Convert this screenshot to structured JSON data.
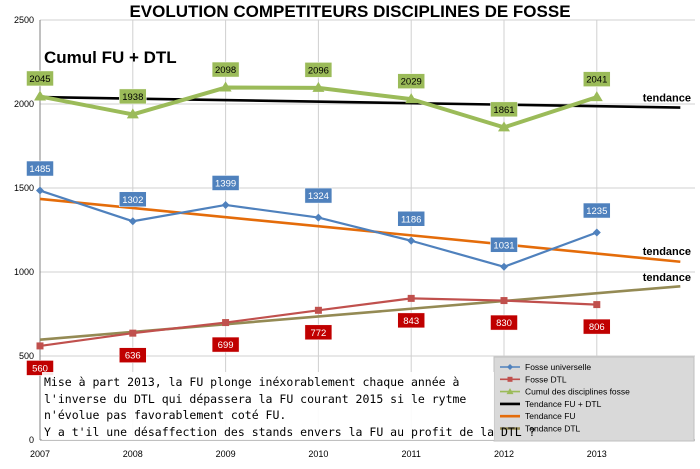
{
  "chart_data": {
    "type": "line",
    "title": "EVOLUTION COMPETITEURS DISCIPLINES DE FOSSE",
    "subtitle": "Cumul FU + DTL",
    "x": [
      2007,
      2008,
      2009,
      2010,
      2011,
      2012,
      2013
    ],
    "ylim": [
      0,
      2500
    ],
    "yticks": [
      0,
      500,
      1000,
      1500,
      2000,
      2500
    ],
    "grid": true,
    "legend_position": "bottom-right",
    "series": [
      {
        "name": "Fosse universelle",
        "values": [
          1485,
          1302,
          1399,
          1324,
          1186,
          1031,
          1235
        ],
        "color": "#4f81bd",
        "marker": "diamond",
        "label_bg": "#4f81bd"
      },
      {
        "name": "Fosse DTL",
        "values": [
          560,
          636,
          699,
          772,
          843,
          830,
          806
        ],
        "color": "#c0504d",
        "marker": "square",
        "label_bg": "#c00000"
      },
      {
        "name": "Cumul des disciplines fosse",
        "values": [
          2045,
          1938,
          2098,
          2096,
          2029,
          1861,
          2041
        ],
        "color": "#9bbb59",
        "marker": "triangle",
        "label_bg": "#9bbb59"
      }
    ],
    "trendlines": [
      {
        "name": "Tendance FU + DTL",
        "color": "#000000",
        "label": "tendance",
        "from": [
          2007,
          2041
        ],
        "to": [
          2013.9,
          1979
        ]
      },
      {
        "name": "Tendance FU",
        "color": "#e46c0a",
        "label": "tendance",
        "from": [
          2007,
          1435
        ],
        "to": [
          2013.9,
          1061
        ]
      },
      {
        "name": "Tendance DTL",
        "color": "#948a54",
        "label": "tendance",
        "from": [
          2007,
          597
        ],
        "to": [
          2013.9,
          915
        ]
      }
    ]
  },
  "note_lines": [
    "Mise à part 2013, la FU plonge inéxorablement chaque année à",
    "l'inverse du DTL qui dépassera la FU courant 2015 si le rytme",
    "n'évolue pas favorablement coté FU.",
    "Y a t'il une désaffection des stands envers la FU au profit de la DTL ?"
  ]
}
